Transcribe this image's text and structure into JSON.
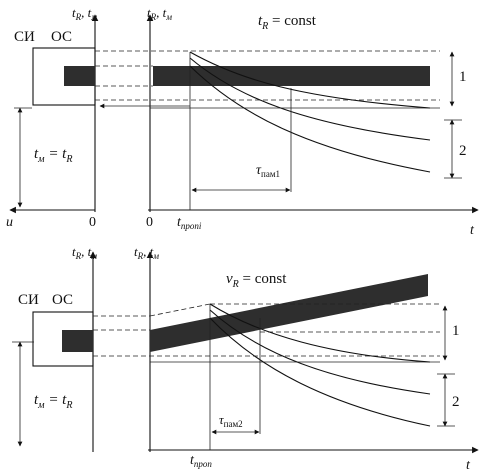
{
  "colors": {
    "ink": "#111111",
    "band": "#2e2e2e",
    "paper": "#ffffff"
  },
  "top": {
    "axis_label_left": "t",
    "axis_label_left_sub": "R",
    "axis_label_left_sep": ", t",
    "axis_label_left_sub2": "м",
    "axis_label_right": "t",
    "axis_label_right_sub": "R",
    "axis_label_right_sep": ", t",
    "axis_label_right_sub2": "м",
    "condition": "t",
    "condition_sub": "R",
    "condition_rest": " = const",
    "si_label": "СИ",
    "os_label": "ОС",
    "equality": "t",
    "equality_sub": "м",
    "equality_mid": " = t",
    "equality_sub2": "R",
    "u_label": "u",
    "zero_left": "0",
    "zero_right": "0",
    "t_prop": "t",
    "t_prop_sub": "пропі",
    "tau": "τ",
    "tau_sub": "пам1",
    "t_axis": "t",
    "zone1": "1",
    "zone2": "2"
  },
  "bottom": {
    "axis_label_left": "t",
    "axis_label_left_sub": "R",
    "axis_label_left_sep": ", t",
    "axis_label_left_sub2": "м",
    "axis_label_right": "t",
    "axis_label_right_sub": "R",
    "axis_label_right_sep": ", t",
    "axis_label_right_sub2": "м",
    "condition": "v",
    "condition_sub": "R",
    "condition_rest": " = const",
    "si_label": "СИ",
    "os_label": "ОС",
    "equality": "t",
    "equality_sub": "м",
    "equality_mid": " = t",
    "equality_sub2": "R",
    "t_prop": "t",
    "t_prop_sub": "пpоп",
    "tau": "τ",
    "tau_sub": "пам2",
    "t_axis": "t",
    "zone1": "1",
    "zone2": "2"
  }
}
